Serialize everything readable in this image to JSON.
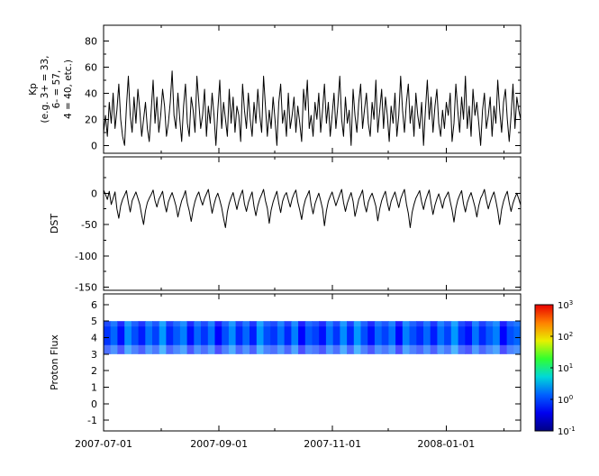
{
  "figure": {
    "background": "#ffffff",
    "line_color": "#000000"
  },
  "chart_data": [
    {
      "id": "kp",
      "type": "line",
      "ylabel_lines": [
        "Kp",
        "(e.g. 3+ = 33,",
        "6- = 57,",
        "4 = 40, etc.)"
      ],
      "ylim": [
        -6,
        92
      ],
      "yticks": [
        0,
        20,
        40,
        60,
        80
      ],
      "yticks_minor": [
        10,
        30,
        50,
        70
      ],
      "line_color": "#000000",
      "values": [
        10,
        23,
        7,
        33,
        17,
        40,
        13,
        27,
        47,
        20,
        7,
        0,
        30,
        53,
        23,
        10,
        37,
        17,
        43,
        27,
        7,
        20,
        33,
        13,
        3,
        27,
        50,
        17,
        37,
        10,
        23,
        43,
        30,
        7,
        17,
        33,
        57,
        23,
        13,
        40,
        20,
        3,
        30,
        47,
        17,
        7,
        37,
        27,
        10,
        53,
        33,
        13,
        23,
        43,
        7,
        30,
        17,
        40,
        23,
        0,
        27,
        50,
        13,
        33,
        20,
        7,
        43,
        17,
        37,
        10,
        30,
        23,
        3,
        47,
        27,
        13,
        40,
        20,
        7,
        33,
        17,
        43,
        23,
        10,
        53,
        30,
        7,
        27,
        13,
        37,
        20,
        0,
        33,
        47,
        17,
        27,
        7,
        40,
        13,
        23,
        37,
        10,
        30,
        17,
        3,
        43,
        27,
        50,
        13,
        23,
        7,
        33,
        20,
        40,
        10,
        27,
        47,
        17,
        33,
        7,
        23,
        40,
        13,
        30,
        53,
        20,
        7,
        37,
        17,
        27,
        0,
        43,
        23,
        10,
        33,
        47,
        13,
        27,
        40,
        17,
        7,
        33,
        20,
        50,
        10,
        27,
        43,
        13,
        37,
        23,
        3,
        30,
        17,
        40,
        7,
        23,
        53,
        27,
        10,
        33,
        47,
        17,
        30,
        7,
        40,
        23,
        13,
        33,
        0,
        27,
        50,
        20,
        37,
        10,
        30,
        43,
        17,
        7,
        27,
        13,
        33,
        23,
        40,
        3,
        17,
        47,
        27,
        10,
        37,
        20,
        53,
        13,
        30,
        7,
        43,
        23,
        33,
        17,
        0,
        27,
        40,
        13,
        23,
        37,
        7,
        30,
        17,
        50,
        27,
        10,
        33,
        43,
        20,
        3,
        23,
        47,
        13,
        37,
        27,
        20
      ]
    },
    {
      "id": "dst",
      "type": "line",
      "ylabel": "DST",
      "ylim": [
        -155,
        58
      ],
      "yticks": [
        0,
        -50,
        -100,
        -150
      ],
      "yticks_minor": [
        25,
        -25,
        -75,
        -125
      ],
      "line_color": "#000000",
      "values": [
        5,
        -2,
        -10,
        3,
        -18,
        -8,
        2,
        -25,
        -40,
        -20,
        -10,
        -3,
        4,
        -15,
        -30,
        -12,
        -5,
        2,
        -8,
        -18,
        -35,
        -50,
        -28,
        -15,
        -8,
        -2,
        5,
        -12,
        -22,
        -10,
        -4,
        3,
        -17,
        -30,
        -14,
        -6,
        1,
        -9,
        -20,
        -38,
        -24,
        -12,
        -5,
        4,
        -16,
        -28,
        -45,
        -26,
        -13,
        -4,
        2,
        -10,
        -19,
        -8,
        -1,
        6,
        -14,
        -32,
        -18,
        -7,
        0,
        -11,
        -23,
        -40,
        -55,
        -30,
        -16,
        -7,
        1,
        -13,
        -26,
        -12,
        -3,
        5,
        -17,
        -29,
        -15,
        -6,
        2,
        -21,
        -36,
        -20,
        -9,
        -2,
        6,
        -12,
        -24,
        -48,
        -27,
        -14,
        -5,
        3,
        -16,
        -31,
        -13,
        -4,
        1,
        -11,
        -22,
        -9,
        -1,
        5,
        -14,
        -27,
        -42,
        -22,
        -10,
        -3,
        4,
        -18,
        -33,
        -17,
        -8,
        0,
        -12,
        -25,
        -52,
        -28,
        -13,
        -5,
        2,
        -9,
        -20,
        -11,
        -2,
        6,
        -15,
        -29,
        -16,
        -7,
        1,
        -13,
        -37,
        -24,
        -10,
        -3,
        5,
        -18,
        -30,
        -14,
        -6,
        0,
        -10,
        -21,
        -44,
        -25,
        -12,
        -4,
        3,
        -15,
        -28,
        -13,
        -5,
        2,
        -11,
        -23,
        -9,
        -1,
        6,
        -17,
        -32,
        -55,
        -31,
        -18,
        -8,
        -2,
        4,
        -14,
        -26,
        -12,
        -3,
        5,
        -16,
        -34,
        -19,
        -9,
        -1,
        -12,
        -24,
        -10,
        -4,
        2,
        -13,
        -27,
        -46,
        -24,
        -11,
        -3,
        4,
        -17,
        -30,
        -15,
        -6,
        1,
        -10,
        -22,
        -38,
        -20,
        -8,
        -2,
        6,
        -11,
        -25,
        -14,
        -5,
        2,
        -12,
        -28,
        -50,
        -26,
        -13,
        -4,
        3,
        -15,
        -29,
        -16,
        -7,
        0,
        -9,
        -19
      ]
    },
    {
      "id": "proton_flux",
      "type": "heatmap",
      "ylabel": "Proton Flux",
      "ylim": [
        -1.65,
        6.65
      ],
      "yticks": [
        6,
        5,
        4,
        3,
        2,
        1,
        0,
        -1
      ],
      "band_y": [
        3,
        5
      ],
      "value_scale": {
        "min": -1,
        "max": 3
      },
      "values": [
        -0.3,
        -0.1,
        -0.45,
        0.05,
        -0.2,
        -0.4,
        -0.05,
        -0.25,
        0.1,
        -0.35,
        -0.15,
        0.0,
        -0.45,
        -0.1,
        -0.3,
        -0.05,
        -0.5,
        -0.2,
        0.05,
        -0.35,
        -0.1,
        -0.4,
        0.1,
        -0.2,
        -0.3,
        -0.05,
        -0.35,
        0.0,
        -0.5,
        -0.15,
        -0.25,
        -0.45,
        -0.05,
        -0.3,
        0.05,
        -0.35,
        0.1,
        -0.2,
        -0.45,
        -0.1,
        -0.25,
        -0.05,
        -0.5,
        0.0,
        -0.2,
        -0.35,
        -0.1,
        -0.4,
        -0.05,
        -0.25,
        0.1,
        -0.3,
        -0.45,
        -0.05,
        -0.35,
        -0.15,
        0.0,
        -0.5,
        -0.2,
        -0.1
      ]
    }
  ],
  "x_axis": {
    "xlim": [
      0,
      224
    ],
    "ticks": [
      {
        "day": 0,
        "label": "2007-07-01"
      },
      {
        "day": 62,
        "label": "2007-09-01"
      },
      {
        "day": 123,
        "label": "2007-11-01"
      },
      {
        "day": 184,
        "label": "2008-01-01"
      }
    ],
    "minor_days": [
      31,
      92,
      153,
      215
    ]
  },
  "colorbar": {
    "base": "10",
    "exponents": [
      3,
      2,
      1,
      0,
      -1
    ],
    "colors_bottom_to_top": [
      "#000084",
      "#0000f0",
      "#0060ff",
      "#00d8d8",
      "#30ff30",
      "#e8f000",
      "#ff8000",
      "#e80000"
    ]
  }
}
